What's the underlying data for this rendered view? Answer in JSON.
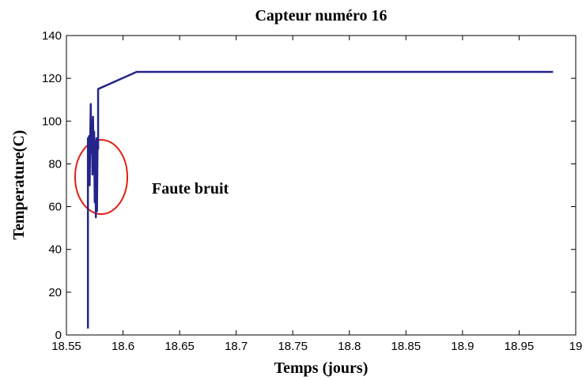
{
  "chart_data": {
    "type": "line",
    "title": "Capteur numéro 16",
    "xlabel": "Temps (jours)",
    "ylabel": "Temperature(C)",
    "annotation": "Faute bruit",
    "xlim": [
      18.55,
      19
    ],
    "ylim": [
      0,
      140
    ],
    "xticks": [
      18.55,
      18.6,
      18.65,
      18.7,
      18.75,
      18.8,
      18.85,
      18.9,
      18.95,
      19
    ],
    "yticks": [
      0,
      20,
      40,
      60,
      80,
      100,
      120,
      140
    ],
    "grid": false,
    "series": [
      {
        "color": "#24248c",
        "x": [
          18.569,
          18.569,
          18.5695,
          18.57,
          18.5705,
          18.571,
          18.5715,
          18.572,
          18.5725,
          18.573,
          18.5735,
          18.574,
          18.5745,
          18.575,
          18.5755,
          18.576,
          18.5765,
          18.577,
          18.5775,
          18.578,
          18.578,
          18.612,
          18.98
        ],
        "values": [
          3,
          92,
          88,
          93,
          70,
          90,
          108,
          85,
          100,
          75,
          102,
          84,
          95,
          62,
          90,
          55,
          92,
          58,
          90,
          87,
          115,
          123,
          123
        ]
      }
    ]
  }
}
